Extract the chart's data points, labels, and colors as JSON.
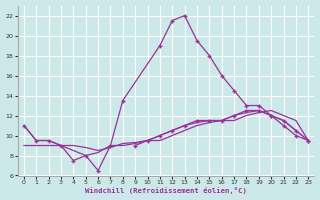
{
  "bg_color": "#cce8e8",
  "grid_color": "#ffffff",
  "line_color": "#993399",
  "xlabel": "Windchill (Refroidissement éolien,°C)",
  "ylim": [
    6,
    23
  ],
  "xlim": [
    -0.5,
    23.5
  ],
  "yticks": [
    6,
    8,
    10,
    12,
    14,
    16,
    18,
    20,
    22
  ],
  "xticks": [
    0,
    1,
    2,
    3,
    4,
    5,
    6,
    7,
    8,
    9,
    10,
    11,
    12,
    13,
    14,
    15,
    16,
    17,
    18,
    19,
    20,
    21,
    22,
    23
  ],
  "series_spiky": [
    11.0,
    9.5,
    9.5,
    9.0,
    7.5,
    8.0,
    6.5,
    9.0,
    13.5,
    19.0,
    21.5,
    22.0,
    19.5,
    18.0,
    16.0,
    14.5,
    13.0,
    13.0,
    12.0,
    11.0,
    10.0,
    9.5
  ],
  "series_spiky_x": [
    0,
    1,
    2,
    3,
    4,
    5,
    6,
    7,
    8,
    11,
    12,
    13,
    14,
    15,
    16,
    17,
    18,
    19,
    20,
    21,
    22,
    23
  ],
  "series_upper": [
    9.0,
    9.5,
    10.0,
    10.5,
    11.0,
    11.5,
    11.5,
    11.5,
    12.0,
    12.5,
    12.5,
    12.0,
    11.5,
    10.5,
    9.5
  ],
  "series_upper_x": [
    9,
    10,
    11,
    12,
    13,
    14,
    15,
    16,
    17,
    18,
    19,
    20,
    21,
    22,
    23
  ],
  "series_mid": [
    11.0,
    9.5,
    9.5,
    9.0,
    9.0,
    8.8,
    8.5,
    8.8,
    9.2,
    9.3,
    9.5,
    10.0,
    10.5,
    11.0,
    11.3,
    11.5,
    11.5,
    12.0,
    12.3,
    12.5,
    12.0,
    11.5,
    10.5,
    9.5
  ],
  "series_mid_x": [
    0,
    1,
    2,
    3,
    4,
    5,
    6,
    7,
    8,
    9,
    10,
    11,
    12,
    13,
    14,
    15,
    16,
    17,
    18,
    19,
    20,
    21,
    22,
    23
  ],
  "series_low": [
    9.0,
    9.0,
    9.0,
    9.0,
    8.5,
    8.0,
    8.3,
    9.0,
    9.0,
    9.2,
    9.5,
    9.5,
    10.0,
    10.5,
    11.0,
    11.3,
    11.5,
    11.5,
    12.0,
    12.3,
    12.5,
    12.0,
    11.5,
    9.5
  ],
  "series_low_x": [
    0,
    1,
    2,
    3,
    4,
    5,
    6,
    7,
    8,
    9,
    10,
    11,
    12,
    13,
    14,
    15,
    16,
    17,
    18,
    19,
    20,
    21,
    22,
    23
  ]
}
